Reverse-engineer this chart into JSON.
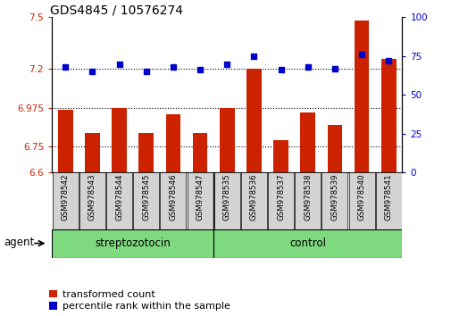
{
  "title": "GDS4845 / 10576274",
  "samples": [
    "GSM978542",
    "GSM978543",
    "GSM978544",
    "GSM978545",
    "GSM978546",
    "GSM978547",
    "GSM978535",
    "GSM978536",
    "GSM978537",
    "GSM978538",
    "GSM978539",
    "GSM978540",
    "GSM978541"
  ],
  "red_values": [
    6.965,
    6.83,
    6.975,
    6.83,
    6.935,
    6.83,
    6.975,
    7.2,
    6.785,
    6.945,
    6.875,
    7.48,
    7.26
  ],
  "blue_values": [
    68,
    65,
    70,
    65,
    68,
    66,
    70,
    75,
    66,
    68,
    67,
    76,
    72
  ],
  "ylim_left": [
    6.6,
    7.5
  ],
  "ylim_right": [
    0,
    100
  ],
  "yticks_left": [
    6.6,
    6.75,
    6.975,
    7.2,
    7.5
  ],
  "yticks_right": [
    0,
    25,
    50,
    75,
    100
  ],
  "hlines": [
    7.2,
    6.975,
    6.75
  ],
  "n_strep": 6,
  "bar_color": "#cc2200",
  "dot_color": "#0000cc",
  "group_bg": "#7FD97F",
  "sample_bg": "#d3d3d3",
  "agent_label": "agent",
  "strep_label": "streptozotocin",
  "ctrl_label": "control",
  "legend_red": "transformed count",
  "legend_blue": "percentile rank within the sample",
  "bar_bottom": 6.6,
  "title_fontsize": 10,
  "tick_fontsize": 7.5,
  "sample_fontsize": 6.2,
  "group_fontsize": 8.5,
  "legend_fontsize": 8,
  "axis_color_left": "#cc2200",
  "axis_color_right": "#0000cc"
}
